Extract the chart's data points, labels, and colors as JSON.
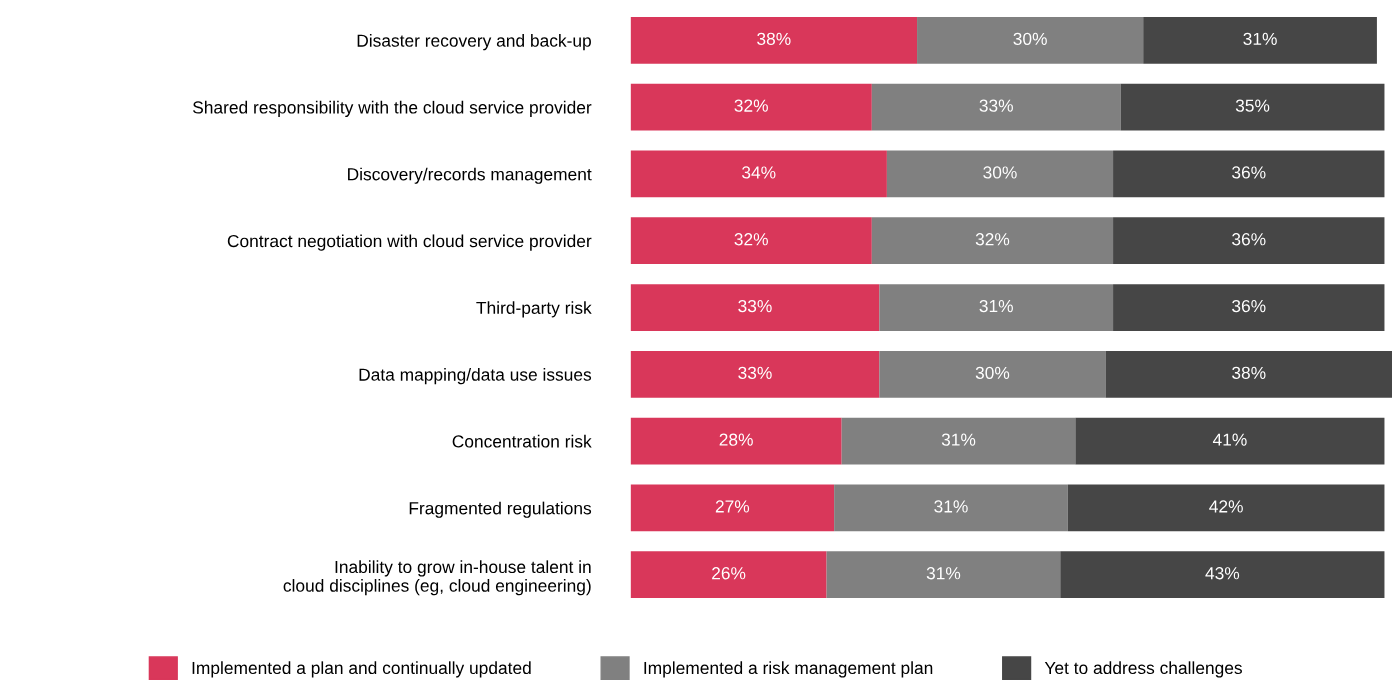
{
  "chart_data": {
    "type": "bar",
    "orientation": "horizontal",
    "stacked": true,
    "legend": "bottom",
    "grid": false,
    "tick_labels": "y",
    "categories": [
      "Disaster recovery and back-up",
      "Shared responsibility with the cloud service provider",
      "Discovery/records management",
      "Contract negotiation with cloud service provider",
      "Third-party risk",
      "Data mapping/data use issues",
      "Concentration risk",
      "Fragmented regulations",
      "Inability to grow in-house talent in\ncloud disciplines (eg, cloud engineering)"
    ],
    "series": [
      {
        "name": "Implemented a plan and continually updated",
        "color": "#d9375a",
        "values": [
          38,
          32,
          34,
          32,
          33,
          33,
          28,
          27,
          26
        ],
        "value_labels": [
          "38%",
          "32%",
          "34%",
          "32%",
          "33%",
          "33%",
          "28%",
          "27%",
          "26%"
        ]
      },
      {
        "name": "Implemented a risk management plan",
        "color": "#808080",
        "values": [
          30,
          33,
          30,
          32,
          31,
          30,
          31,
          31,
          31
        ],
        "value_labels": [
          "30%",
          "33%",
          "30%",
          "32%",
          "31%",
          "30%",
          "31%",
          "31%",
          "31%"
        ]
      },
      {
        "name": "Yet to address challenges",
        "color": "#464646",
        "values": [
          31,
          35,
          36,
          36,
          36,
          38,
          41,
          42,
          43
        ],
        "value_labels": [
          "31%",
          "35%",
          "36%",
          "36%",
          "36%",
          "38%",
          "41%",
          "42%",
          "43%"
        ]
      }
    ]
  }
}
